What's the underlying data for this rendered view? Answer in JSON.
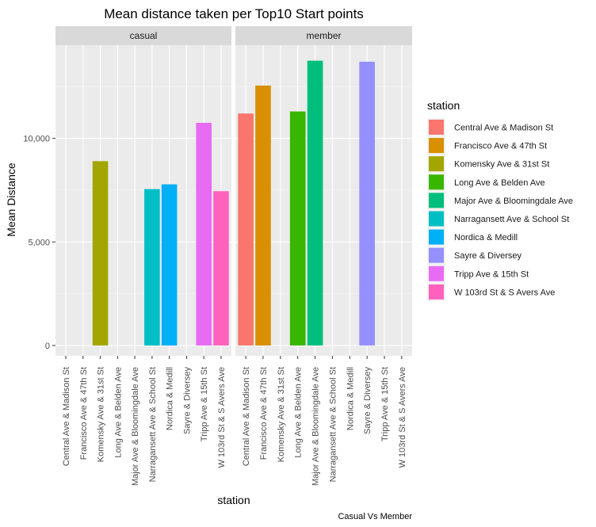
{
  "chart_data": {
    "type": "bar",
    "title": "Mean distance taken per Top10 Start points",
    "xlabel": "station",
    "ylabel": "Mean Distance",
    "caption": "Casual Vs Member",
    "ylim": [
      -500,
      14500
    ],
    "yticks": [
      0,
      5000,
      10000
    ],
    "ytick_labels": [
      "0",
      "5,000",
      "10,000"
    ],
    "grid": true,
    "legend": {
      "title": "station",
      "position": "right"
    },
    "categories": [
      "Central Ave & Madison St",
      "Francisco Ave & 47th St",
      "Komensky Ave & 31st St",
      "Long Ave & Belden Ave",
      "Major Ave & Bloomingdale Ave",
      "Narragansett Ave & School St",
      "Nordica & Medill",
      "Sayre & Diversey",
      "Tripp Ave & 15th St",
      "W 103rd St & S Avers Ave"
    ],
    "colors": [
      "#F8766D",
      "#D89000",
      "#A3A500",
      "#39B600",
      "#00BF7D",
      "#00BFC4",
      "#00B0F6",
      "#9590FF",
      "#E76BF3",
      "#FF62BC"
    ],
    "facets": [
      {
        "name": "casual",
        "values": [
          null,
          null,
          8900,
          null,
          null,
          7550,
          7780,
          null,
          10750,
          7450
        ]
      },
      {
        "name": "member",
        "values": [
          11200,
          12550,
          null,
          11300,
          13750,
          null,
          null,
          13700,
          null,
          null
        ]
      }
    ]
  }
}
